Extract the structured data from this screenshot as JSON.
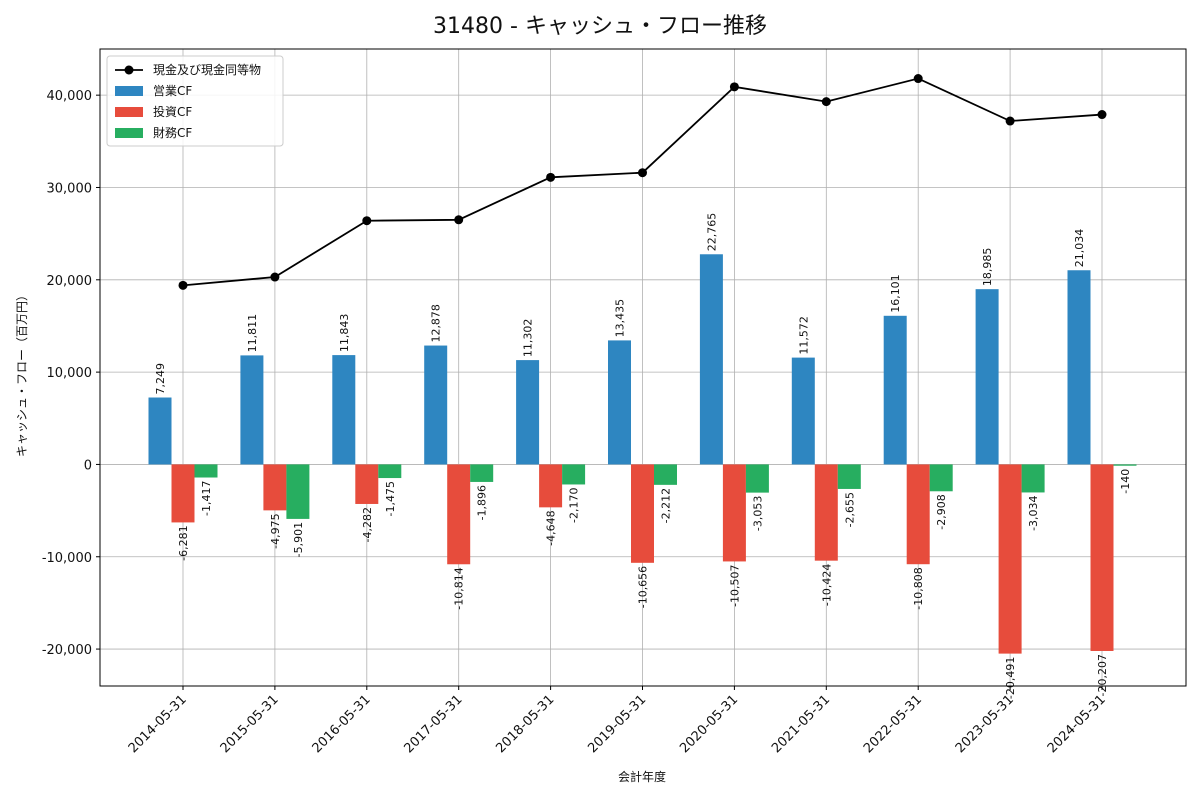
{
  "chart_data": {
    "type": "bar",
    "title": "31480 - キャッシュ・フロー推移",
    "xlabel": "会計年度",
    "ylabel": "キャッシュ・フロー（百万円）",
    "ylim": [
      -24000,
      45000
    ],
    "yticks": [
      -20000,
      -10000,
      0,
      10000,
      20000,
      30000,
      40000
    ],
    "ytick_labels": [
      "-20,000",
      "-10,000",
      "0",
      "10,000",
      "20,000",
      "30,000",
      "40,000"
    ],
    "grid": true,
    "legend_position": "top-left",
    "categories": [
      "2014-05-31",
      "2015-05-31",
      "2016-05-31",
      "2017-05-31",
      "2018-05-31",
      "2019-05-31",
      "2020-05-31",
      "2021-05-31",
      "2022-05-31",
      "2023-05-31",
      "2024-05-31"
    ],
    "series": [
      {
        "name": "営業CF",
        "kind": "bar",
        "color": "#2e86c1",
        "values": [
          7249,
          11811,
          11843,
          12878,
          11302,
          13435,
          22765,
          11572,
          16101,
          18985,
          21034
        ],
        "labels": [
          "7,249",
          "11,811",
          "11,843",
          "12,878",
          "11,302",
          "13,435",
          "22,765",
          "11,572",
          "16,101",
          "18,985",
          "21,034"
        ]
      },
      {
        "name": "投資CF",
        "kind": "bar",
        "color": "#e74c3c",
        "values": [
          -6281,
          -4975,
          -4282,
          -10814,
          -4648,
          -10656,
          -10507,
          -10424,
          -10808,
          -20491,
          -20207
        ],
        "labels": [
          "-6,281",
          "-4,975",
          "-4,282",
          "-10,814",
          "-4,648",
          "-10,656",
          "-10,507",
          "-10,424",
          "-10,808",
          "-20,491",
          "-20,207"
        ]
      },
      {
        "name": "財務CF",
        "kind": "bar",
        "color": "#27ae60",
        "values": [
          -1417,
          -5901,
          -1475,
          -1896,
          -2170,
          -2212,
          -3053,
          -2655,
          -2908,
          -3034,
          -140
        ],
        "labels": [
          "-1,417",
          "-5,901",
          "-1,475",
          "-1,896",
          "-2,170",
          "-2,212",
          "-3,053",
          "-2,655",
          "-2,908",
          "-3,034",
          "-140"
        ]
      },
      {
        "name": "現金及び現金同等物",
        "kind": "line",
        "color": "#000000",
        "values": [
          19400,
          20300,
          26400,
          26500,
          31100,
          31600,
          40900,
          39300,
          41800,
          37200,
          37900
        ]
      }
    ]
  }
}
